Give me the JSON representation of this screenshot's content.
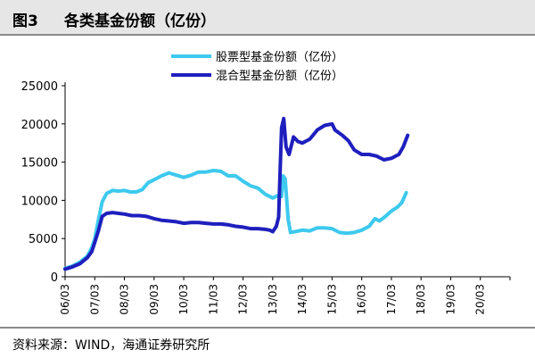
{
  "header": {
    "figure_no": "图3",
    "title": "各类基金份额（亿份）"
  },
  "footer": {
    "source": "资料来源：WIND，海通证券研究所"
  },
  "colors": {
    "stock": "#3ec9ee",
    "mixed": "#1f1fbe",
    "axis": "#000000"
  },
  "chart_data": {
    "type": "line",
    "title": "",
    "xlabel": "",
    "ylabel": "",
    "ylim": [
      0,
      25000
    ],
    "yticks": [
      0,
      5000,
      10000,
      15000,
      20000,
      25000
    ],
    "xticks": [
      "06/03",
      "07/03",
      "08/03",
      "09/03",
      "10/03",
      "11/03",
      "12/03",
      "13/03",
      "14/03",
      "15/03",
      "16/03",
      "17/03",
      "18/03",
      "19/03",
      "20/03"
    ],
    "grid": false,
    "legend": "top-center",
    "series": [
      {
        "name": "股票型基金份额（亿份）",
        "color": "#3ec9ee",
        "points": [
          [
            0,
            1100
          ],
          [
            0.25,
            1400
          ],
          [
            0.5,
            1900
          ],
          [
            0.75,
            2700
          ],
          [
            0.9,
            3800
          ],
          [
            1.0,
            5000
          ],
          [
            1.12,
            7400
          ],
          [
            1.25,
            9800
          ],
          [
            1.4,
            10900
          ],
          [
            1.6,
            11300
          ],
          [
            1.8,
            11200
          ],
          [
            2.0,
            11300
          ],
          [
            2.2,
            11100
          ],
          [
            2.4,
            11100
          ],
          [
            2.6,
            11400
          ],
          [
            2.8,
            12300
          ],
          [
            3.0,
            12700
          ],
          [
            3.25,
            13200
          ],
          [
            3.5,
            13600
          ],
          [
            3.75,
            13300
          ],
          [
            4.0,
            13000
          ],
          [
            4.25,
            13300
          ],
          [
            4.5,
            13700
          ],
          [
            4.75,
            13700
          ],
          [
            5.0,
            13900
          ],
          [
            5.25,
            13800
          ],
          [
            5.5,
            13200
          ],
          [
            5.75,
            13200
          ],
          [
            6.0,
            12500
          ],
          [
            6.25,
            11900
          ],
          [
            6.5,
            11600
          ],
          [
            6.75,
            10800
          ],
          [
            7.0,
            10300
          ],
          [
            7.15,
            10600
          ],
          [
            7.3,
            10500
          ],
          [
            7.35,
            13200
          ],
          [
            7.42,
            12800
          ],
          [
            7.52,
            7500
          ],
          [
            7.6,
            5800
          ],
          [
            7.75,
            5900
          ],
          [
            8.0,
            6100
          ],
          [
            8.25,
            6000
          ],
          [
            8.5,
            6400
          ],
          [
            8.75,
            6400
          ],
          [
            9.0,
            6300
          ],
          [
            9.25,
            5800
          ],
          [
            9.5,
            5700
          ],
          [
            9.75,
            5800
          ],
          [
            10.0,
            6100
          ],
          [
            10.25,
            6600
          ],
          [
            10.45,
            7600
          ],
          [
            10.6,
            7300
          ],
          [
            10.8,
            7900
          ],
          [
            11.0,
            8600
          ],
          [
            11.2,
            9100
          ],
          [
            11.35,
            9700
          ],
          [
            11.5,
            11000
          ]
        ]
      },
      {
        "name": "混合型基金份额（亿份）",
        "color": "#1f1fbe",
        "points": [
          [
            0,
            1000
          ],
          [
            0.25,
            1300
          ],
          [
            0.5,
            1700
          ],
          [
            0.75,
            2500
          ],
          [
            0.9,
            3300
          ],
          [
            1.0,
            4500
          ],
          [
            1.12,
            6000
          ],
          [
            1.25,
            7900
          ],
          [
            1.4,
            8300
          ],
          [
            1.6,
            8400
          ],
          [
            1.8,
            8300
          ],
          [
            2.0,
            8200
          ],
          [
            2.25,
            8000
          ],
          [
            2.5,
            8000
          ],
          [
            2.75,
            7900
          ],
          [
            3.0,
            7600
          ],
          [
            3.25,
            7400
          ],
          [
            3.5,
            7300
          ],
          [
            3.75,
            7200
          ],
          [
            4.0,
            7000
          ],
          [
            4.25,
            7100
          ],
          [
            4.5,
            7100
          ],
          [
            4.75,
            7000
          ],
          [
            5.0,
            6900
          ],
          [
            5.25,
            6900
          ],
          [
            5.5,
            6800
          ],
          [
            5.75,
            6600
          ],
          [
            6.0,
            6500
          ],
          [
            6.25,
            6300
          ],
          [
            6.5,
            6300
          ],
          [
            6.75,
            6200
          ],
          [
            6.9,
            6100
          ],
          [
            7.0,
            5900
          ],
          [
            7.12,
            6600
          ],
          [
            7.2,
            7800
          ],
          [
            7.25,
            14000
          ],
          [
            7.3,
            19500
          ],
          [
            7.37,
            20700
          ],
          [
            7.45,
            17000
          ],
          [
            7.55,
            16000
          ],
          [
            7.7,
            18300
          ],
          [
            7.85,
            17700
          ],
          [
            8.0,
            17500
          ],
          [
            8.25,
            18000
          ],
          [
            8.5,
            19200
          ],
          [
            8.75,
            19800
          ],
          [
            9.0,
            20000
          ],
          [
            9.1,
            19200
          ],
          [
            9.35,
            18500
          ],
          [
            9.55,
            17800
          ],
          [
            9.75,
            16600
          ],
          [
            10.0,
            16000
          ],
          [
            10.25,
            16000
          ],
          [
            10.5,
            15800
          ],
          [
            10.75,
            15300
          ],
          [
            11.0,
            15500
          ],
          [
            11.25,
            16000
          ],
          [
            11.4,
            17000
          ],
          [
            11.55,
            18500
          ]
        ]
      }
    ]
  }
}
